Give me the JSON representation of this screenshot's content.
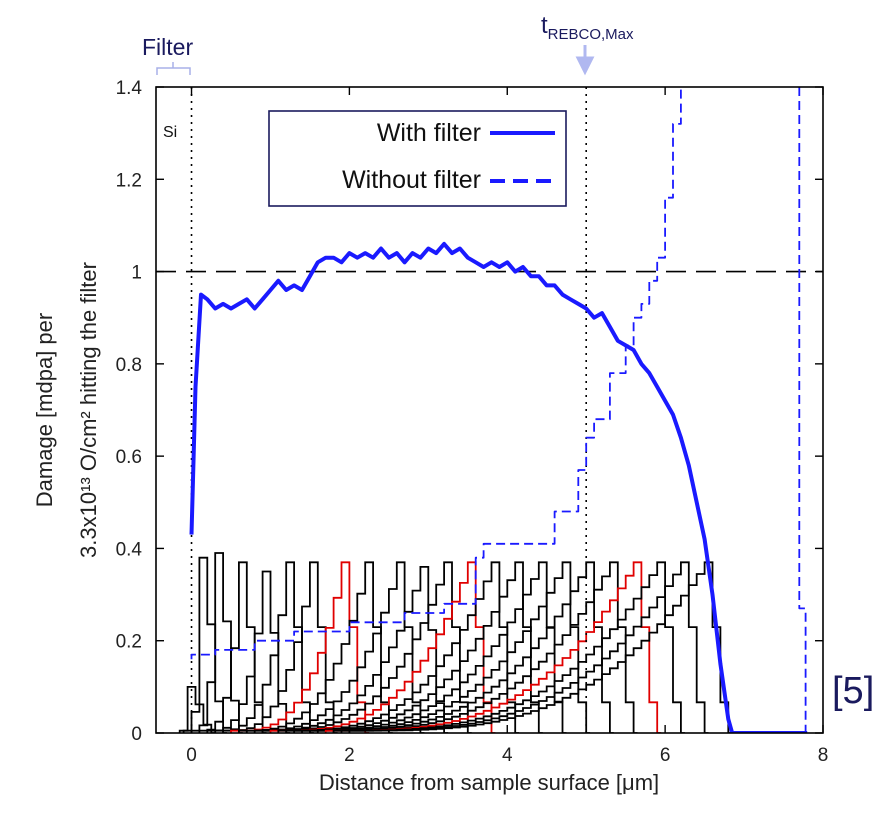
{
  "chart_data": {
    "type": "line",
    "xlabel": "Distance from sample surface [μm]",
    "ylabel_line1": "Damage [mdpa] per",
    "ylabel_line2": "3.3x10¹³ O/cm² hitting the filter",
    "xlim": [
      -0.45,
      8.0
    ],
    "ylim": [
      0,
      1.4
    ],
    "xticks": [
      "0",
      "2",
      "4",
      "6",
      "8"
    ],
    "yticks": [
      "0",
      "0.2",
      "0.4",
      "0.6",
      "0.8",
      "1",
      "1.2",
      "1.4"
    ],
    "grid": false,
    "legend_position": "top",
    "annotations": {
      "si_label": "Si",
      "filter_label": "Filter",
      "trebco_main": "t",
      "trebco_sub": "REBCO,Max",
      "ref": "[5]"
    },
    "reference_lines": {
      "filter_boundary_x": 0,
      "t_rebco_max_x": 5.0,
      "unity_y": 1.0
    },
    "series": [
      {
        "name": "With filter",
        "style": "solid",
        "color": "#1a1aff",
        "points": [
          [
            0,
            0.43
          ],
          [
            0.05,
            0.75
          ],
          [
            0.12,
            0.95
          ],
          [
            0.2,
            0.94
          ],
          [
            0.3,
            0.92
          ],
          [
            0.4,
            0.93
          ],
          [
            0.5,
            0.92
          ],
          [
            0.6,
            0.93
          ],
          [
            0.7,
            0.94
          ],
          [
            0.8,
            0.92
          ],
          [
            0.9,
            0.94
          ],
          [
            1.0,
            0.96
          ],
          [
            1.1,
            0.98
          ],
          [
            1.2,
            0.96
          ],
          [
            1.3,
            0.97
          ],
          [
            1.4,
            0.96
          ],
          [
            1.5,
            0.99
          ],
          [
            1.6,
            1.02
          ],
          [
            1.7,
            1.03
          ],
          [
            1.8,
            1.03
          ],
          [
            1.9,
            1.02
          ],
          [
            2.0,
            1.04
          ],
          [
            2.1,
            1.03
          ],
          [
            2.2,
            1.04
          ],
          [
            2.3,
            1.03
          ],
          [
            2.4,
            1.05
          ],
          [
            2.5,
            1.03
          ],
          [
            2.6,
            1.04
          ],
          [
            2.7,
            1.02
          ],
          [
            2.8,
            1.04
          ],
          [
            2.9,
            1.03
          ],
          [
            3.0,
            1.05
          ],
          [
            3.1,
            1.04
          ],
          [
            3.2,
            1.06
          ],
          [
            3.3,
            1.04
          ],
          [
            3.4,
            1.05
          ],
          [
            3.5,
            1.03
          ],
          [
            3.6,
            1.02
          ],
          [
            3.7,
            1.01
          ],
          [
            3.8,
            1.02
          ],
          [
            3.9,
            1.01
          ],
          [
            4.0,
            1.02
          ],
          [
            4.1,
            1.0
          ],
          [
            4.2,
            1.01
          ],
          [
            4.3,
            0.99
          ],
          [
            4.4,
            0.99
          ],
          [
            4.5,
            0.97
          ],
          [
            4.6,
            0.97
          ],
          [
            4.7,
            0.95
          ],
          [
            4.8,
            0.94
          ],
          [
            4.9,
            0.93
          ],
          [
            5.0,
            0.92
          ],
          [
            5.1,
            0.9
          ],
          [
            5.2,
            0.91
          ],
          [
            5.3,
            0.88
          ],
          [
            5.4,
            0.85
          ],
          [
            5.5,
            0.84
          ],
          [
            5.6,
            0.83
          ],
          [
            5.7,
            0.8
          ],
          [
            5.8,
            0.78
          ],
          [
            5.9,
            0.75
          ],
          [
            6.0,
            0.72
          ],
          [
            6.1,
            0.69
          ],
          [
            6.2,
            0.64
          ],
          [
            6.3,
            0.58
          ],
          [
            6.4,
            0.5
          ],
          [
            6.5,
            0.42
          ],
          [
            6.6,
            0.3
          ],
          [
            6.7,
            0.15
          ],
          [
            6.8,
            0.03
          ],
          [
            6.85,
            0.0
          ],
          [
            7.8,
            0.0
          ]
        ]
      },
      {
        "name": "Without filter",
        "style": "dashed",
        "color": "#1a1aff",
        "points": [
          [
            0,
            0.16
          ],
          [
            0,
            0.17
          ],
          [
            0.3,
            0.17
          ],
          [
            0.3,
            0.18
          ],
          [
            0.8,
            0.18
          ],
          [
            0.8,
            0.2
          ],
          [
            1.3,
            0.2
          ],
          [
            1.3,
            0.22
          ],
          [
            2.0,
            0.22
          ],
          [
            2.0,
            0.24
          ],
          [
            2.7,
            0.24
          ],
          [
            2.7,
            0.26
          ],
          [
            3.2,
            0.26
          ],
          [
            3.2,
            0.28
          ],
          [
            3.6,
            0.28
          ],
          [
            3.6,
            0.38
          ],
          [
            3.7,
            0.38
          ],
          [
            3.7,
            0.41
          ],
          [
            4.6,
            0.41
          ],
          [
            4.6,
            0.48
          ],
          [
            4.9,
            0.48
          ],
          [
            4.9,
            0.57
          ],
          [
            5.0,
            0.57
          ],
          [
            5.0,
            0.64
          ],
          [
            5.1,
            0.64
          ],
          [
            5.1,
            0.68
          ],
          [
            5.3,
            0.68
          ],
          [
            5.3,
            0.78
          ],
          [
            5.5,
            0.78
          ],
          [
            5.5,
            0.84
          ],
          [
            5.6,
            0.84
          ],
          [
            5.6,
            0.9
          ],
          [
            5.7,
            0.9
          ],
          [
            5.7,
            0.93
          ],
          [
            5.8,
            0.93
          ],
          [
            5.8,
            0.98
          ],
          [
            5.9,
            0.98
          ],
          [
            5.9,
            1.03
          ],
          [
            6.0,
            1.03
          ],
          [
            6.0,
            1.16
          ],
          [
            6.1,
            1.16
          ],
          [
            6.1,
            1.32
          ],
          [
            6.2,
            1.32
          ],
          [
            6.2,
            1.4
          ]
        ]
      },
      {
        "name": "",
        "style": "dashed",
        "color": "#1a1aff",
        "points": [
          [
            7.7,
            1.4
          ],
          [
            7.7,
            0.27
          ],
          [
            7.78,
            0.27
          ],
          [
            7.78,
            0.0
          ]
        ]
      }
    ],
    "step_profiles": {
      "color_black": "#000000",
      "color_red": "#e00000",
      "bin_width": 0.1,
      "profiles": [
        {
          "start": -0.15,
          "peak_x": -0.05,
          "peak": 0.1,
          "color": "black"
        },
        {
          "start": -0.1,
          "peak_x": 0.1,
          "peak": 0.38,
          "color": "black"
        },
        {
          "start": 0.0,
          "peak_x": 0.3,
          "peak": 0.39,
          "color": "black"
        },
        {
          "start": 0.1,
          "peak_x": 0.6,
          "peak": 0.37,
          "color": "black"
        },
        {
          "start": 0.2,
          "peak_x": 0.9,
          "peak": 0.35,
          "color": "black"
        },
        {
          "start": 0.3,
          "peak_x": 1.2,
          "peak": 0.37,
          "color": "black"
        },
        {
          "start": 0.4,
          "peak_x": 1.5,
          "peak": 0.37,
          "color": "black"
        },
        {
          "start": 0.5,
          "peak_x": 1.9,
          "peak": 0.37,
          "color": "red"
        },
        {
          "start": 0.6,
          "peak_x": 2.2,
          "peak": 0.37,
          "color": "black"
        },
        {
          "start": 0.7,
          "peak_x": 2.6,
          "peak": 0.37,
          "color": "black"
        },
        {
          "start": 0.8,
          "peak_x": 2.9,
          "peak": 0.36,
          "color": "black"
        },
        {
          "start": 0.9,
          "peak_x": 3.2,
          "peak": 0.37,
          "color": "black"
        },
        {
          "start": 1.0,
          "peak_x": 3.5,
          "peak": 0.37,
          "color": "red"
        },
        {
          "start": 1.1,
          "peak_x": 3.8,
          "peak": 0.37,
          "color": "black"
        },
        {
          "start": 1.2,
          "peak_x": 4.1,
          "peak": 0.37,
          "color": "black"
        },
        {
          "start": 1.3,
          "peak_x": 4.4,
          "peak": 0.37,
          "color": "black"
        },
        {
          "start": 1.4,
          "peak_x": 4.7,
          "peak": 0.37,
          "color": "black"
        },
        {
          "start": 1.5,
          "peak_x": 5.0,
          "peak": 0.37,
          "color": "black"
        },
        {
          "start": 1.6,
          "peak_x": 5.3,
          "peak": 0.37,
          "color": "black"
        },
        {
          "start": 1.7,
          "peak_x": 5.6,
          "peak": 0.37,
          "color": "red"
        },
        {
          "start": 1.8,
          "peak_x": 5.9,
          "peak": 0.37,
          "color": "black"
        },
        {
          "start": 1.9,
          "peak_x": 6.2,
          "peak": 0.37,
          "color": "black"
        },
        {
          "start": 2.0,
          "peak_x": 6.5,
          "peak": 0.37,
          "color": "black"
        }
      ]
    }
  }
}
